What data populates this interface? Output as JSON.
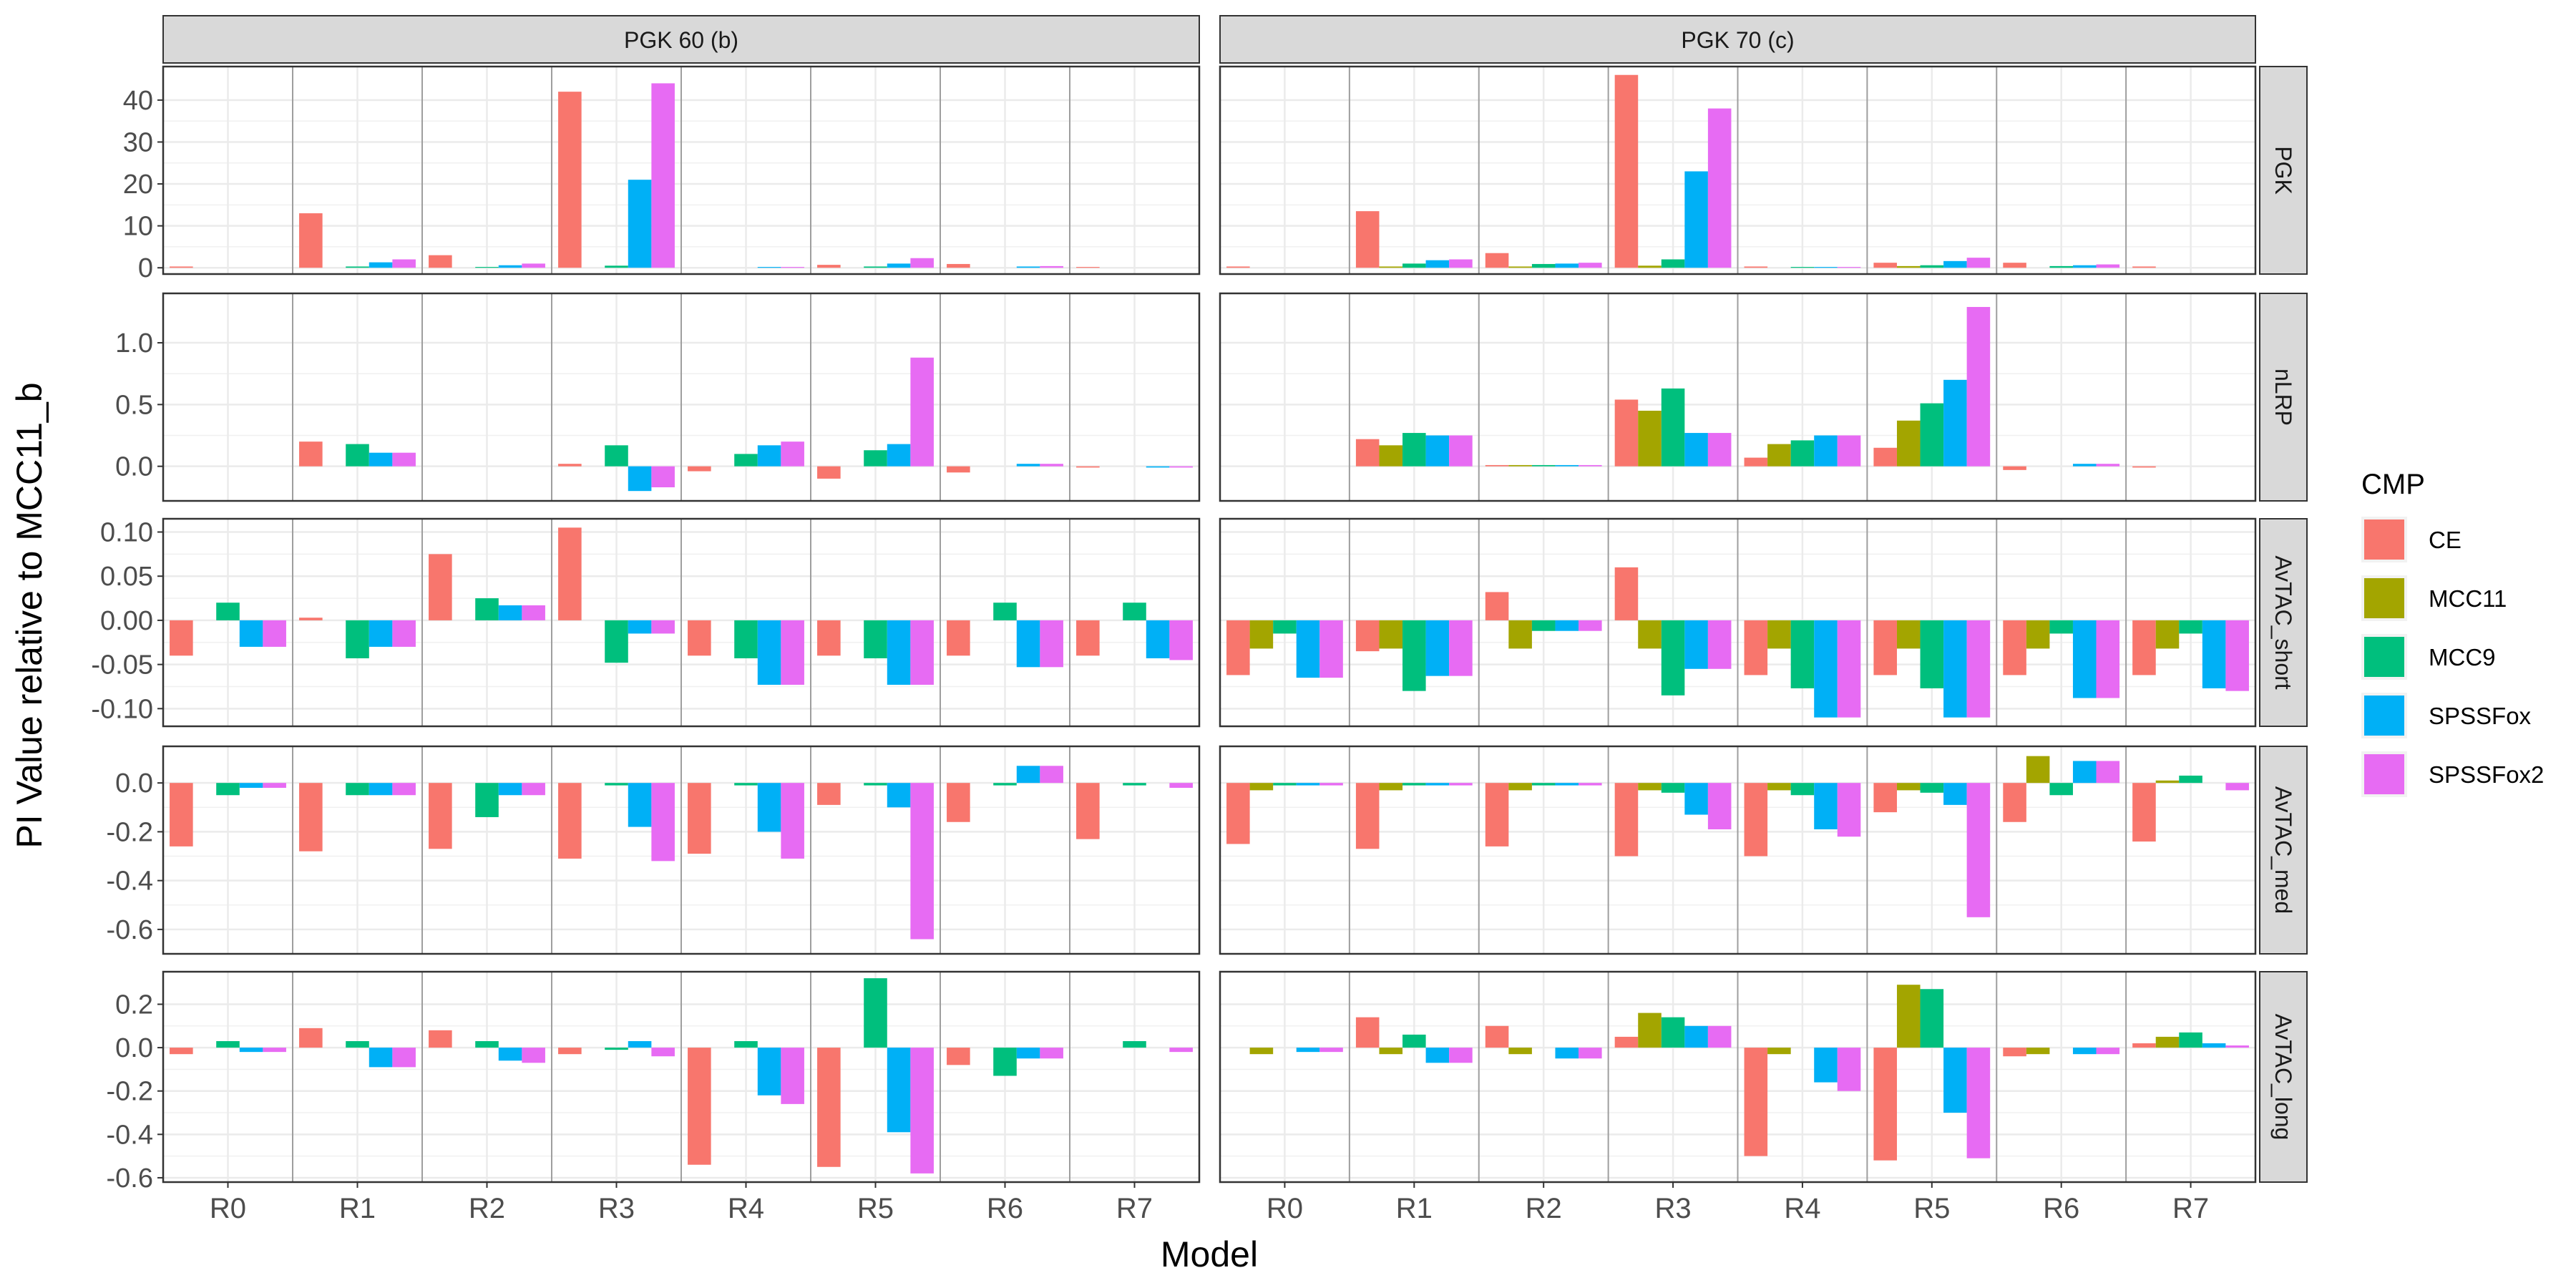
{
  "chart_data": {
    "type": "bar",
    "xlabel": "Model",
    "ylabel": "PI Value relative to MCC11_b",
    "categories": [
      "R0",
      "R1",
      "R2",
      "R3",
      "R4",
      "R5",
      "R6",
      "R7"
    ],
    "columns": [
      "PGK 60 (b)",
      "PGK 70 (c)"
    ],
    "legend": {
      "title": "CMP",
      "position": "right",
      "entries": [
        {
          "name": "CE",
          "color": "#F8766D"
        },
        {
          "name": "MCC11",
          "color": "#A3A500"
        },
        {
          "name": "MCC9",
          "color": "#00BF7D"
        },
        {
          "name": "SPSSFox",
          "color": "#00B0F6"
        },
        {
          "name": "SPSSFox2",
          "color": "#E76BF3"
        }
      ]
    },
    "grid": true,
    "rows": [
      {
        "label": "PGK",
        "ylim": [
          -1.5,
          48
        ],
        "ticks": [
          0,
          10,
          20,
          30,
          40
        ],
        "tick_labels": [
          "0",
          "10",
          "20",
          "30",
          "40"
        ],
        "values": [
          [
            [
              0.3,
              0,
              0,
              0,
              0
            ],
            [
              13,
              0,
              0.3,
              1.3,
              2
            ],
            [
              3,
              0,
              0.2,
              0.6,
              1
            ],
            [
              42,
              0,
              0.5,
              21,
              44
            ],
            [
              0,
              0,
              0,
              0.2,
              0.2
            ],
            [
              0.7,
              0,
              0.3,
              1,
              2.3
            ],
            [
              0.9,
              0,
              0,
              0.3,
              0.4
            ],
            [
              0.2,
              0,
              0,
              0,
              0
            ]
          ],
          [
            [
              0.3,
              0,
              0,
              0,
              0
            ],
            [
              13.5,
              0.3,
              1,
              1.8,
              2
            ],
            [
              3.5,
              0.3,
              0.9,
              1,
              1.2
            ],
            [
              46,
              0.5,
              2,
              23,
              38
            ],
            [
              0.3,
              0,
              0.2,
              0.2,
              0.2
            ],
            [
              1.2,
              0.4,
              0.6,
              1.6,
              2.4
            ],
            [
              1.2,
              0,
              0.4,
              0.6,
              0.8
            ],
            [
              0.3,
              0,
              0,
              0,
              0
            ]
          ]
        ]
      },
      {
        "label": "nLRP",
        "ylim": [
          -0.28,
          1.4
        ],
        "ticks": [
          0,
          0.5,
          1
        ],
        "tick_labels": [
          "0.0",
          "0.5",
          "1.0"
        ],
        "values": [
          [
            [
              0,
              0,
              0,
              0,
              0
            ],
            [
              0.2,
              0,
              0.18,
              0.11,
              0.11
            ],
            [
              0,
              0,
              0,
              0,
              0
            ],
            [
              0.02,
              0,
              0.17,
              -0.2,
              -0.17
            ],
            [
              -0.04,
              0,
              0.1,
              0.17,
              0.2
            ],
            [
              -0.1,
              0,
              0.13,
              0.18,
              0.88
            ],
            [
              -0.05,
              0,
              0,
              0.02,
              0.02
            ],
            [
              -0.01,
              0,
              0,
              -0.01,
              -0.01
            ]
          ],
          [
            [
              0,
              0,
              0,
              0,
              0
            ],
            [
              0.22,
              0.17,
              0.27,
              0.25,
              0.25
            ],
            [
              0.01,
              0.01,
              0.01,
              0.01,
              0.01
            ],
            [
              0.54,
              0.45,
              0.63,
              0.27,
              0.27
            ],
            [
              0.07,
              0.18,
              0.21,
              0.25,
              0.25
            ],
            [
              0.15,
              0.37,
              0.51,
              0.7,
              1.29
            ],
            [
              -0.03,
              0,
              0,
              0.02,
              0.02
            ],
            [
              -0.01,
              0,
              0,
              0,
              0
            ]
          ]
        ]
      },
      {
        "label": "AvTAC_short",
        "ylim": [
          -0.12,
          0.115
        ],
        "ticks": [
          -0.1,
          -0.05,
          0,
          0.05,
          0.1
        ],
        "tick_labels": [
          "-0.10",
          "-0.05",
          "0.00",
          "0.05",
          "0.10"
        ],
        "values": [
          [
            [
              -0.04,
              0,
              0.02,
              -0.03,
              -0.03
            ],
            [
              0.003,
              0,
              -0.043,
              -0.03,
              -0.03
            ],
            [
              0.075,
              0,
              0.025,
              0.017,
              0.017
            ],
            [
              0.105,
              0,
              -0.048,
              -0.015,
              -0.015
            ],
            [
              -0.04,
              0,
              -0.043,
              -0.073,
              -0.073
            ],
            [
              -0.04,
              0,
              -0.043,
              -0.073,
              -0.073
            ],
            [
              -0.04,
              0,
              0.02,
              -0.053,
              -0.053
            ],
            [
              -0.04,
              0,
              0.02,
              -0.043,
              -0.045
            ]
          ],
          [
            [
              -0.062,
              -0.032,
              -0.015,
              -0.065,
              -0.065
            ],
            [
              -0.035,
              -0.032,
              -0.08,
              -0.063,
              -0.063
            ],
            [
              0.032,
              -0.032,
              -0.012,
              -0.012,
              -0.012
            ],
            [
              0.06,
              -0.032,
              -0.085,
              -0.055,
              -0.055
            ],
            [
              -0.062,
              -0.032,
              -0.077,
              -0.11,
              -0.11
            ],
            [
              -0.062,
              -0.032,
              -0.077,
              -0.11,
              -0.11
            ],
            [
              -0.062,
              -0.032,
              -0.015,
              -0.088,
              -0.088
            ],
            [
              -0.062,
              -0.032,
              -0.015,
              -0.077,
              -0.08
            ]
          ]
        ]
      },
      {
        "label": "AvTAC_med",
        "ylim": [
          -0.7,
          0.15
        ],
        "ticks": [
          -0.6,
          -0.4,
          -0.2,
          0
        ],
        "tick_labels": [
          "-0.6",
          "-0.4",
          "-0.2",
          "0.0"
        ],
        "values": [
          [
            [
              -0.26,
              0,
              -0.05,
              -0.02,
              -0.02
            ],
            [
              -0.28,
              0,
              -0.05,
              -0.05,
              -0.05
            ],
            [
              -0.27,
              0,
              -0.14,
              -0.05,
              -0.05
            ],
            [
              -0.31,
              0,
              -0.01,
              -0.18,
              -0.32
            ],
            [
              -0.29,
              0,
              -0.01,
              -0.2,
              -0.31
            ],
            [
              -0.09,
              0,
              -0.01,
              -0.1,
              -0.64
            ],
            [
              -0.16,
              0,
              -0.01,
              0.07,
              0.07
            ],
            [
              -0.23,
              0,
              -0.01,
              0,
              -0.02
            ]
          ],
          [
            [
              -0.25,
              -0.03,
              -0.01,
              -0.01,
              -0.01
            ],
            [
              -0.27,
              -0.03,
              -0.01,
              -0.01,
              -0.01
            ],
            [
              -0.26,
              -0.03,
              -0.01,
              -0.01,
              -0.01
            ],
            [
              -0.3,
              -0.03,
              -0.04,
              -0.13,
              -0.19
            ],
            [
              -0.3,
              -0.03,
              -0.05,
              -0.19,
              -0.22
            ],
            [
              -0.12,
              -0.03,
              -0.04,
              -0.09,
              -0.55
            ],
            [
              -0.16,
              0.11,
              -0.05,
              0.09,
              0.09
            ],
            [
              -0.24,
              0.01,
              0.03,
              0,
              -0.03
            ]
          ]
        ]
      },
      {
        "label": "AvTAC_long",
        "ylim": [
          -0.62,
          0.35
        ],
        "ticks": [
          -0.6,
          -0.4,
          -0.2,
          0,
          0.2
        ],
        "tick_labels": [
          "-0.6",
          "-0.4",
          "-0.2",
          "0.0",
          "0.2"
        ],
        "values": [
          [
            [
              -0.03,
              0,
              0.03,
              -0.02,
              -0.02
            ],
            [
              0.09,
              0,
              0.03,
              -0.09,
              -0.09
            ],
            [
              0.08,
              0,
              0.03,
              -0.06,
              -0.07
            ],
            [
              -0.03,
              0,
              -0.01,
              0.03,
              -0.04
            ],
            [
              -0.54,
              0,
              0.03,
              -0.22,
              -0.26
            ],
            [
              -0.55,
              0,
              0.32,
              -0.39,
              -0.58
            ],
            [
              -0.08,
              0,
              -0.13,
              -0.05,
              -0.05
            ],
            [
              0,
              0,
              0.03,
              0,
              -0.02
            ]
          ],
          [
            [
              0,
              -0.03,
              0,
              -0.02,
              -0.02
            ],
            [
              0.14,
              -0.03,
              0.06,
              -0.07,
              -0.07
            ],
            [
              0.1,
              -0.03,
              0,
              -0.05,
              -0.05
            ],
            [
              0.05,
              0.16,
              0.14,
              0.1,
              0.1
            ],
            [
              -0.5,
              -0.03,
              0,
              -0.16,
              -0.2
            ],
            [
              -0.52,
              0.29,
              0.27,
              -0.3,
              -0.51
            ],
            [
              -0.04,
              -0.03,
              0,
              -0.03,
              -0.03
            ],
            [
              0.02,
              0.05,
              0.07,
              0.02,
              0.01
            ]
          ]
        ]
      }
    ]
  }
}
